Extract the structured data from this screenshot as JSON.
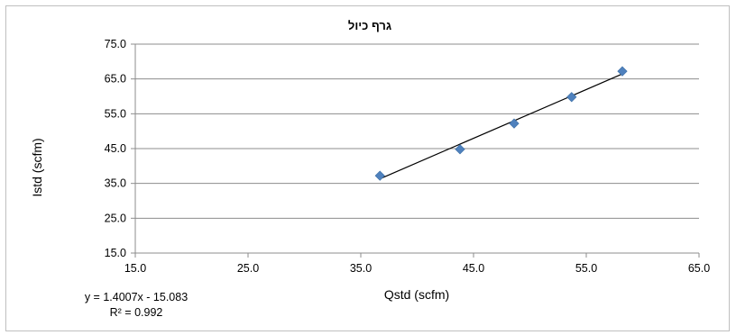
{
  "chart_data": {
    "type": "scatter",
    "title": "גרף כיול",
    "xlabel": "Qstd (scfm)",
    "ylabel": "Istd (scfm)",
    "xlim": [
      15,
      65
    ],
    "ylim": [
      15,
      75
    ],
    "x_ticks": [
      "15.0",
      "25.0",
      "35.0",
      "45.0",
      "55.0",
      "65.0"
    ],
    "y_ticks": [
      "15.0",
      "25.0",
      "35.0",
      "45.0",
      "55.0",
      "65.0",
      "75.0"
    ],
    "grid": "horizontal",
    "marker_color": "#4F81BD",
    "series": [
      {
        "x": [
          36.7,
          43.8,
          48.6,
          53.7,
          58.2
        ],
        "y": [
          37.2,
          44.8,
          52.2,
          59.8,
          67.2
        ]
      }
    ],
    "trendline": {
      "slope": 1.4007,
      "intercept": -15.083,
      "equation": "y = 1.4007x - 15.083",
      "r_squared": "R² = 0.992"
    }
  }
}
